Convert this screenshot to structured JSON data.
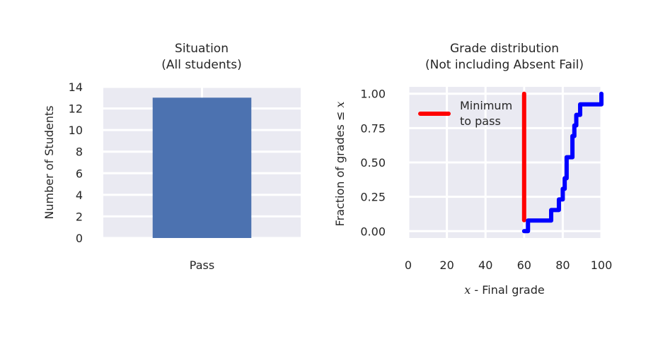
{
  "chart_data": [
    {
      "type": "bar",
      "title": "Situation",
      "subtitle": "(All students)",
      "categories": [
        "Pass"
      ],
      "values": [
        13
      ],
      "xlabel": "",
      "ylabel": "Number of Students",
      "ylim": [
        0,
        14
      ],
      "yticks": [
        "0",
        "2",
        "4",
        "6",
        "8",
        "10",
        "12",
        "14"
      ],
      "grid": true,
      "colors": {
        "bar": "#4c72b0",
        "background": "#eaeaf2",
        "grid": "#ffffff"
      }
    },
    {
      "type": "line",
      "title": "Grade distribution",
      "subtitle": "(Not including Absent Fail)",
      "xlabel_math": "x",
      "xlabel_text": " - Final grade",
      "ylabel_text": "Fraction of grades ≤ ",
      "ylabel_math": "x",
      "xlim": [
        0,
        100
      ],
      "ylim": [
        -0.05,
        1.05
      ],
      "xticks": [
        "0",
        "20",
        "40",
        "60",
        "80",
        "100"
      ],
      "yticks": [
        "0.00",
        "0.25",
        "0.50",
        "0.75",
        "1.00"
      ],
      "grid": true,
      "legend_position": "upper-left",
      "series": [
        {
          "name": "Minimum to pass",
          "legend_lines": [
            "Minimum",
            "to pass"
          ],
          "color": "#ff0000",
          "x": [
            60,
            60
          ],
          "y": [
            0.08,
            1.0
          ]
        },
        {
          "color": "#0000ff",
          "step": true,
          "x": [
            60,
            62,
            74,
            78,
            80,
            81,
            82,
            85,
            86,
            87,
            89,
            100
          ],
          "y": [
            0.0,
            0.077,
            0.154,
            0.231,
            0.308,
            0.385,
            0.538,
            0.692,
            0.769,
            0.846,
            0.923,
            1.0
          ]
        }
      ],
      "colors": {
        "background": "#eaeaf2",
        "grid": "#ffffff"
      }
    }
  ]
}
